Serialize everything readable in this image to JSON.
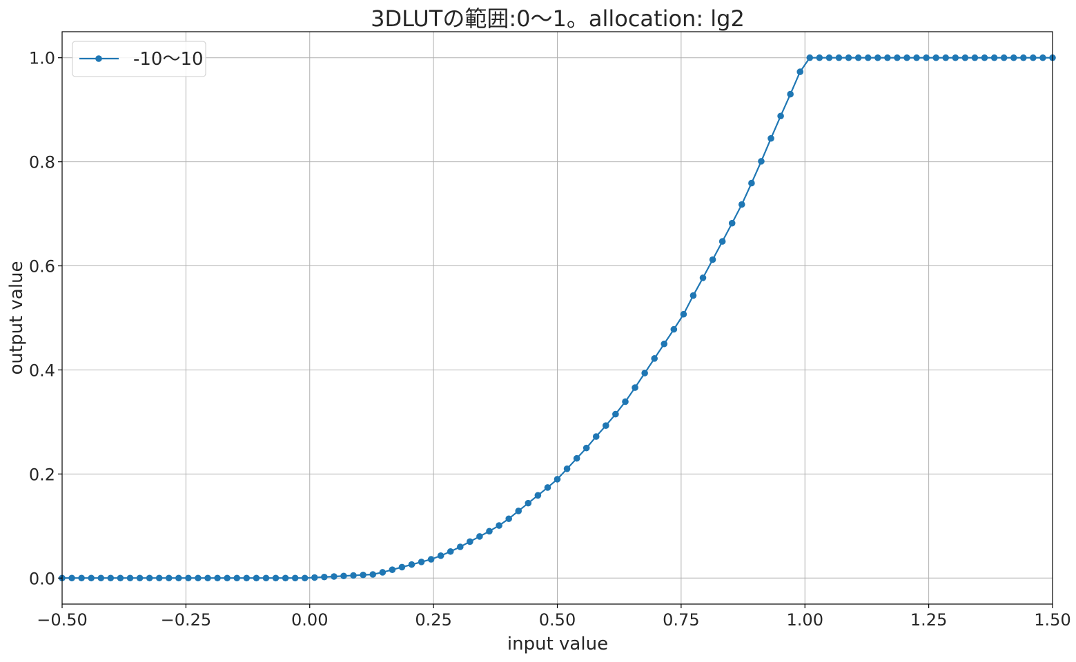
{
  "chart_data": {
    "type": "line",
    "title": "3DLUTの範囲:0〜1。allocation: lg2",
    "xlabel": "input value",
    "ylabel": "output value",
    "xlim": [
      -0.5,
      1.5
    ],
    "ylim": [
      -0.05,
      1.05
    ],
    "xticks": [
      -0.5,
      -0.25,
      0.0,
      0.25,
      0.5,
      0.75,
      1.0,
      1.25,
      1.5
    ],
    "xtick_labels": [
      "−0.50",
      "−0.25",
      "0.00",
      "0.25",
      "0.50",
      "0.75",
      "1.00",
      "1.25",
      "1.50"
    ],
    "yticks": [
      0.0,
      0.2,
      0.4,
      0.6,
      0.8,
      1.0
    ],
    "ytick_labels": [
      "0.0",
      "0.2",
      "0.4",
      "0.6",
      "0.8",
      "1.0"
    ],
    "grid": true,
    "legend": "top-left",
    "series": [
      {
        "name": "-10〜10",
        "color": "#1f77b4",
        "marker": "circle",
        "x": [
          -0.5,
          -0.4804,
          -0.4608,
          -0.4412,
          -0.4216,
          -0.402,
          -0.3824,
          -0.3627,
          -0.3431,
          -0.3235,
          -0.3039,
          -0.2843,
          -0.2647,
          -0.2451,
          -0.2255,
          -0.2059,
          -0.1863,
          -0.1667,
          -0.1471,
          -0.1275,
          -0.1078,
          -0.0882,
          -0.0686,
          -0.049,
          -0.0294,
          -0.0098,
          0.0098,
          0.0294,
          0.049,
          0.0686,
          0.0882,
          0.1078,
          0.1275,
          0.1471,
          0.1667,
          0.1863,
          0.2059,
          0.2255,
          0.2451,
          0.2647,
          0.2843,
          0.3039,
          0.3235,
          0.3431,
          0.3627,
          0.3824,
          0.402,
          0.4216,
          0.4412,
          0.4608,
          0.4804,
          0.5,
          0.5196,
          0.5392,
          0.5588,
          0.5784,
          0.598,
          0.6176,
          0.6373,
          0.6569,
          0.6765,
          0.6961,
          0.7157,
          0.7353,
          0.7549,
          0.7745,
          0.7941,
          0.8137,
          0.8333,
          0.8529,
          0.8725,
          0.8922,
          0.9118,
          0.9314,
          0.951,
          0.9706,
          0.9902,
          1.0098,
          1.0294,
          1.049,
          1.0686,
          1.0882,
          1.1078,
          1.1275,
          1.1471,
          1.1667,
          1.1863,
          1.2059,
          1.2255,
          1.2451,
          1.2647,
          1.2843,
          1.3039,
          1.3235,
          1.3431,
          1.3627,
          1.3824,
          1.402,
          1.4216,
          1.4412,
          1.4608,
          1.4804,
          1.5
        ],
        "y": [
          0,
          0,
          0,
          0,
          0,
          0,
          0,
          0,
          0,
          0,
          0,
          0,
          0,
          0,
          0,
          0,
          0,
          0,
          0,
          0,
          0,
          0,
          0,
          0,
          0,
          0,
          0.001,
          0.002,
          0.003,
          0.004,
          0.005,
          0.006,
          0.007,
          0.011,
          0.016,
          0.021,
          0.026,
          0.031,
          0.036,
          0.043,
          0.051,
          0.06,
          0.07,
          0.08,
          0.09,
          0.101,
          0.114,
          0.129,
          0.144,
          0.159,
          0.174,
          0.19,
          0.21,
          0.23,
          0.25,
          0.272,
          0.293,
          0.315,
          0.339,
          0.366,
          0.394,
          0.422,
          0.45,
          0.478,
          0.507,
          0.543,
          0.577,
          0.612,
          0.647,
          0.682,
          0.718,
          0.759,
          0.801,
          0.845,
          0.888,
          0.93,
          0.973,
          1,
          1,
          1,
          1,
          1,
          1,
          1,
          1,
          1,
          1,
          1,
          1,
          1,
          1,
          1,
          1,
          1,
          1,
          1,
          1,
          1,
          1,
          1,
          1,
          1,
          1
        ]
      }
    ]
  }
}
